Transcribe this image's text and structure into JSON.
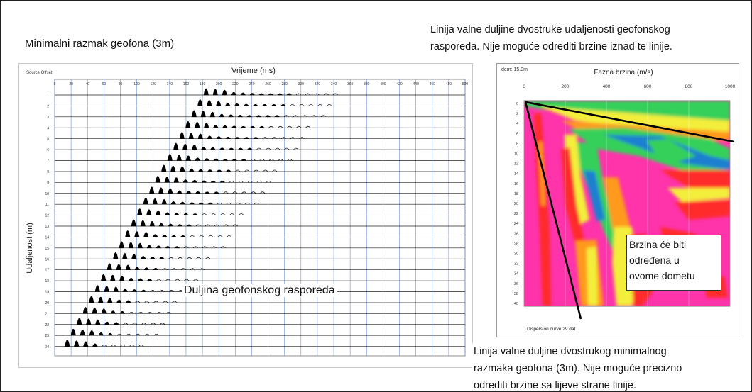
{
  "title_left": "Minimalni razmak geofona (3m)",
  "title_right_line1": "Linija valne duljine dvostruke udaljenosti geofonskog",
  "title_right_line2": "rasporeda. Nije moguće odrediti brzine iznad te linije.",
  "seismogram": {
    "header_left": "Source Offset",
    "xlabel": "Vrijeme (ms)",
    "ylabel": "Udaljenost (m)",
    "x_ticks": [
      "0",
      "20",
      "40",
      "60",
      "80",
      "100",
      "120",
      "140",
      "160",
      "180",
      "200",
      "220",
      "240",
      "260",
      "280",
      "300",
      "320",
      "340",
      "360",
      "380",
      "400",
      "420",
      "440",
      "460",
      "480",
      "500"
    ],
    "traces": 24
  },
  "dispersion": {
    "header_left": "dem: 15.0m",
    "xlabel": "Fazna brzina (m/s)",
    "x_ticks": [
      "0",
      "200",
      "400",
      "600",
      "800",
      "1000"
    ],
    "y_ticks": [
      "0",
      "2",
      "4",
      "6",
      "8",
      "10",
      "12",
      "14",
      "16",
      "18",
      "20",
      "22",
      "24",
      "26",
      "28",
      "30",
      "32",
      "34",
      "36",
      "38",
      "40"
    ],
    "footer": "Dispersion curve 29.dat"
  },
  "label_geophone_length": "Duljina geofonskog rasporeda",
  "range_box": [
    "Brzina će biti",
    "određena u",
    "ovome dometu"
  ],
  "note_bottom_line1": "Linija valne duljine dvostrukog minimalnog",
  "note_bottom_line2": "razmaka geofona (3m). Nije moguće precizno",
  "note_bottom_line3": "odrediti brzine sa lijeve strane linije.",
  "colors": {
    "background_map": "#ff33aa",
    "band_red": "#ff2a2a",
    "band_orange": "#ff9a1a",
    "band_yellow": "#f3ee3a",
    "band_green": "#35d05a",
    "band_blue": "#1a7fd0",
    "grid_blue": "#6a8fd8"
  }
}
